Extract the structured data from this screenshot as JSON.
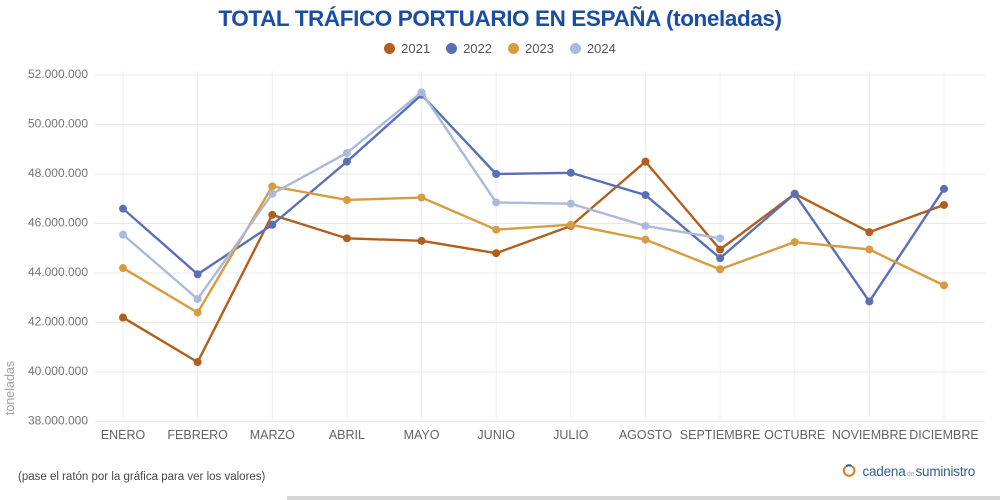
{
  "title": "TOTAL TRÁFICO PORTUARIO EN ESPAÑA (toneladas)",
  "footer": {
    "hint": "(pase el ratón por la gráfica para ver los valores)"
  },
  "logo": {
    "part1": "cadena",
    "part2": "de",
    "part3": "suministro"
  },
  "colors": {
    "title": "#1b4da3",
    "grid": "#e8e8e8",
    "y_tick": "#757575",
    "x_tick": "#636363",
    "axis_title": "#9e9e9e",
    "logo_text": "#33608c",
    "logo_icon_orange": "#e07b26",
    "logo_icon_blue": "#2d5f8a"
  },
  "chart_data": {
    "type": "line",
    "title": "TOTAL TRÁFICO PORTUARIO EN ESPAÑA (toneladas)",
    "ylabel": "toneladas",
    "xlabel": "",
    "ylim": [
      38000000,
      52000000
    ],
    "ytick_step": 2000000,
    "grid": true,
    "legend_position": "top",
    "categories": [
      "ENERO",
      "FEBRERO",
      "MARZO",
      "ABRIL",
      "MAYO",
      "JUNIO",
      "JULIO",
      "AGOSTO",
      "SEPTIEMBRE",
      "OCTUBRE",
      "NOVIEMBRE",
      "DICIEMBRE"
    ],
    "series": [
      {
        "name": "2021",
        "color": "#b25e1d",
        "values": [
          42200000,
          40400000,
          46350000,
          45400000,
          45300000,
          44800000,
          45900000,
          48500000,
          44950000,
          47200000,
          45650000,
          46750000
        ]
      },
      {
        "name": "2022",
        "color": "#5a6fb5",
        "values": [
          46600000,
          43950000,
          45950000,
          48500000,
          51200000,
          48000000,
          48050000,
          47150000,
          44600000,
          47200000,
          42850000,
          47400000
        ]
      },
      {
        "name": "2023",
        "color": "#d69c3f",
        "values": [
          44200000,
          42400000,
          47500000,
          46950000,
          47050000,
          45750000,
          45950000,
          45350000,
          44150000,
          45250000,
          44950000,
          43500000
        ]
      },
      {
        "name": "2024",
        "color": "#aab9dd",
        "values": [
          45550000,
          42950000,
          47200000,
          48850000,
          51300000,
          46850000,
          46800000,
          45900000,
          45400000,
          null,
          null,
          null
        ]
      }
    ]
  }
}
